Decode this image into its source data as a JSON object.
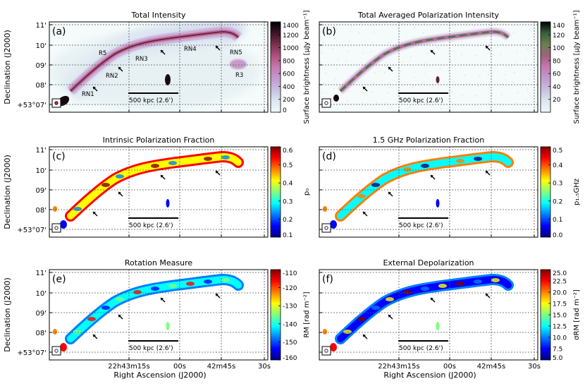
{
  "figure": {
    "scale_bar_label": "500 kpc (2.6')",
    "ylabel": "Declination (J2000)",
    "xlabel": "Right Ascension (J2000)",
    "y_ticks": [
      "11'",
      "10'",
      "09'",
      "08'",
      "+53°07'"
    ],
    "x_ticks": [
      "22h43m15s",
      "00s",
      "42m45s",
      "30s"
    ]
  },
  "chart_data": [
    {
      "panel": "(a)",
      "title": "Total Intensity",
      "type": "heatmap",
      "colorbar": {
        "label": "Surface brightness [μJy beam⁻¹]",
        "ticks": [
          "1400",
          "1200",
          "1000",
          "800",
          "600",
          "400",
          "200",
          "0"
        ],
        "range": [
          0,
          1400
        ],
        "colors": [
          "#f0f8f8",
          "#dce6f2",
          "#c8bede",
          "#c29ad0",
          "#c878b0",
          "#b05080",
          "#7a3050",
          "#3c1628",
          "#000000"
        ]
      },
      "annotations": [
        "R5",
        "RN3",
        "RN4",
        "RN5",
        "RN2",
        "R3",
        "RN1"
      ]
    },
    {
      "panel": "(b)",
      "title": "Total Averaged Polarization Intensity",
      "type": "heatmap",
      "colorbar": {
        "label": "Surface brightness [μJy beam⁻¹]",
        "ticks": [
          "140",
          "120",
          "100",
          "80",
          "60",
          "40",
          "20"
        ],
        "range": [
          0,
          140
        ],
        "colors": [
          "#f0f8f8",
          "#dce6f2",
          "#c8bede",
          "#c29ad0",
          "#c878b0",
          "#a06080",
          "#6a8050",
          "#3a6038",
          "#000000"
        ]
      }
    },
    {
      "panel": "(c)",
      "title": "Intrinsic Polarization Fraction",
      "type": "heatmap",
      "colorbar": {
        "label": "p₀",
        "ticks": [
          "0.6",
          "0.5",
          "0.4",
          "0.3",
          "0.2",
          "0.1"
        ],
        "range": [
          0.1,
          0.6
        ],
        "colors": [
          "#00007f",
          "#0000ff",
          "#007fff",
          "#00ffff",
          "#7fff7f",
          "#ffff00",
          "#ff7f00",
          "#ff0000",
          "#7f0000"
        ]
      }
    },
    {
      "panel": "(d)",
      "title": "1.5 GHz Polarization Fraction",
      "type": "heatmap",
      "colorbar": {
        "label": "p₁.₅GHz",
        "ticks": [
          "0.5",
          "0.4",
          "0.3",
          "0.2",
          "0.1",
          "0.0"
        ],
        "range": [
          0.0,
          0.5
        ],
        "colors": [
          "#00007f",
          "#0000ff",
          "#007fff",
          "#00ffff",
          "#7fff7f",
          "#ffff00",
          "#ff7f00",
          "#ff0000",
          "#7f0000"
        ]
      }
    },
    {
      "panel": "(e)",
      "title": "Rotation Measure",
      "type": "heatmap",
      "colorbar": {
        "label": "RM [rad m⁻²]",
        "ticks": [
          "-110",
          "-120",
          "-130",
          "-140",
          "-150",
          "-160"
        ],
        "range": [
          -160,
          -110
        ],
        "colors": [
          "#00007f",
          "#0000ff",
          "#007fff",
          "#00ffff",
          "#7fff7f",
          "#ffff00",
          "#ff7f00",
          "#ff0000",
          "#7f0000"
        ]
      }
    },
    {
      "panel": "(f)",
      "title": "External Depolarization",
      "type": "heatmap",
      "colorbar": {
        "label": "σRM [rad m⁻²]",
        "ticks": [
          "25.0",
          "22.5",
          "20.0",
          "17.5",
          "15.0",
          "12.5",
          "10.0",
          "7.5",
          "5.0"
        ],
        "range": [
          5.0,
          25.0
        ],
        "colors": [
          "#00007f",
          "#0000ff",
          "#007fff",
          "#00ffff",
          "#7fff7f",
          "#ffff00",
          "#ff7f00",
          "#ff0000",
          "#7f0000"
        ]
      }
    }
  ]
}
